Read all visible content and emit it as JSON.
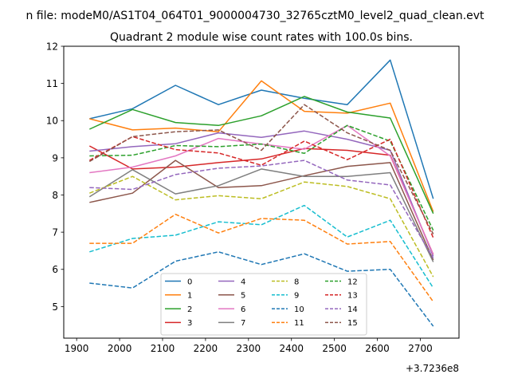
{
  "chart_data": {
    "type": "line",
    "suptitle": "n file: modeM0/AS1T04_064T01_9000004730_32765cztM0_level2_quad_clean.evt",
    "title": "Quadrant 2 module wise count rates with 100.0s bins.",
    "xlabel": "",
    "ylabel": "",
    "x_offset_label": "+3.7236e8",
    "x": [
      1930,
      2030,
      2130,
      2230,
      2330,
      2430,
      2530,
      2630,
      2730
    ],
    "xlim": [
      1870,
      2790
    ],
    "ylim": [
      4.15,
      12.0
    ],
    "xticks": [
      1900,
      2000,
      2100,
      2200,
      2300,
      2400,
      2500,
      2600,
      2700
    ],
    "yticks": [
      5,
      6,
      7,
      8,
      9,
      10,
      11,
      12
    ],
    "grid": false,
    "legend_position": "lower-center",
    "legend_columns": 4,
    "series": [
      {
        "name": "0",
        "color": "#1f77b4",
        "dash": "solid",
        "values": [
          10.05,
          10.32,
          10.95,
          10.43,
          10.82,
          10.6,
          10.43,
          11.63,
          7.9
        ]
      },
      {
        "name": "1",
        "color": "#ff7f0e",
        "dash": "solid",
        "values": [
          10.05,
          9.75,
          9.8,
          9.7,
          11.07,
          10.25,
          10.2,
          10.47,
          7.55
        ]
      },
      {
        "name": "2",
        "color": "#2ca02c",
        "dash": "solid",
        "values": [
          9.77,
          10.3,
          9.95,
          9.87,
          10.13,
          10.65,
          10.23,
          10.07,
          7.5
        ]
      },
      {
        "name": "3",
        "color": "#d62728",
        "dash": "solid",
        "values": [
          9.32,
          8.7,
          8.75,
          8.87,
          8.97,
          9.25,
          9.2,
          9.07,
          6.4
        ]
      },
      {
        "name": "4",
        "color": "#9467bd",
        "dash": "solid",
        "values": [
          9.18,
          9.3,
          9.38,
          9.67,
          9.55,
          9.72,
          9.5,
          9.2,
          6.35
        ]
      },
      {
        "name": "5",
        "color": "#8c564b",
        "dash": "solid",
        "values": [
          7.8,
          8.05,
          8.93,
          8.2,
          8.25,
          8.52,
          8.77,
          8.87,
          6.25
        ]
      },
      {
        "name": "6",
        "color": "#e377c2",
        "dash": "solid",
        "values": [
          8.6,
          8.75,
          9.05,
          9.52,
          9.37,
          9.23,
          9.87,
          9.05,
          6.4
        ]
      },
      {
        "name": "7",
        "color": "#7f7f7f",
        "dash": "solid",
        "values": [
          7.95,
          8.68,
          8.03,
          8.25,
          8.7,
          8.5,
          8.5,
          8.6,
          6.2
        ]
      },
      {
        "name": "8",
        "color": "#bcbd22",
        "dash": "dashed",
        "values": [
          8.05,
          8.5,
          7.87,
          7.98,
          7.9,
          8.35,
          8.23,
          7.9,
          5.8
        ]
      },
      {
        "name": "9",
        "color": "#17becf",
        "dash": "dashed",
        "values": [
          6.47,
          6.83,
          6.92,
          7.28,
          7.2,
          7.72,
          6.87,
          7.32,
          5.5
        ]
      },
      {
        "name": "10",
        "color": "#1f77b4",
        "dash": "dashed",
        "values": [
          5.63,
          5.5,
          6.22,
          6.47,
          6.13,
          6.42,
          5.95,
          6.0,
          4.47
        ]
      },
      {
        "name": "11",
        "color": "#ff7f0e",
        "dash": "dashed",
        "values": [
          6.7,
          6.7,
          7.48,
          6.98,
          7.37,
          7.32,
          6.68,
          6.75,
          5.13
        ]
      },
      {
        "name": "12",
        "color": "#2ca02c",
        "dash": "dashed",
        "values": [
          9.05,
          9.07,
          9.33,
          9.3,
          9.37,
          9.12,
          9.87,
          9.45,
          7.05
        ]
      },
      {
        "name": "13",
        "color": "#d62728",
        "dash": "dashed",
        "values": [
          8.93,
          9.57,
          9.22,
          9.13,
          8.8,
          9.45,
          8.95,
          9.5,
          6.85
        ]
      },
      {
        "name": "14",
        "color": "#9467bd",
        "dash": "dashed",
        "values": [
          8.2,
          8.15,
          8.55,
          8.72,
          8.78,
          8.93,
          8.4,
          8.27,
          6.3
        ]
      },
      {
        "name": "15",
        "color": "#8c564b",
        "dash": "dashed",
        "values": [
          8.9,
          9.57,
          9.7,
          9.75,
          9.2,
          10.43,
          9.67,
          9.2,
          6.95
        ]
      }
    ]
  }
}
